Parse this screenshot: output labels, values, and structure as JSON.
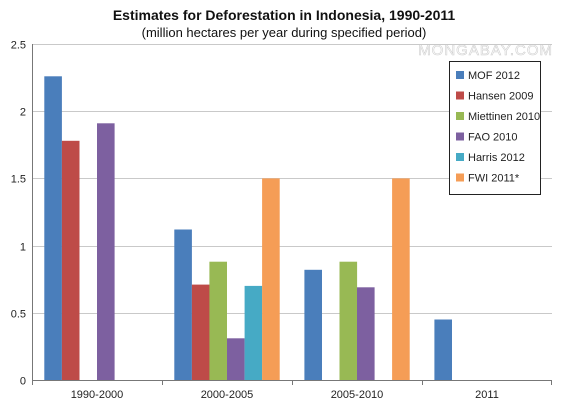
{
  "chart_data": {
    "type": "bar",
    "title": "Estimates for Deforestation in Indonesia, 1990-2011",
    "subtitle": "(million hectares per year during specified period)",
    "watermark": "MONGABAY.COM",
    "xlabel": "",
    "ylabel": "",
    "categories": [
      "1990-2000",
      "2000-2005",
      "2005-2010",
      "2011"
    ],
    "ylim": [
      0,
      2.5
    ],
    "yticks": [
      0,
      0.5,
      1,
      1.5,
      2,
      2.5
    ],
    "ytick_labels": [
      "0",
      "0.5",
      "1",
      "1.5",
      "2",
      "2.5"
    ],
    "grid": true,
    "legend_position": "top-right",
    "series": [
      {
        "name": "MOF 2012",
        "color": "#4a7ebb",
        "values": [
          2.26,
          1.12,
          0.82,
          0.45
        ]
      },
      {
        "name": "Hansen 2009",
        "color": "#be4b48",
        "values": [
          1.78,
          0.71,
          null,
          null
        ]
      },
      {
        "name": "Miettinen 2010",
        "color": "#98b954",
        "values": [
          null,
          0.88,
          0.88,
          null
        ]
      },
      {
        "name": "FAO 2010",
        "color": "#7d60a0",
        "values": [
          1.91,
          0.31,
          0.69,
          null
        ]
      },
      {
        "name": "Harris 2012",
        "color": "#46aac5",
        "values": [
          null,
          0.7,
          null,
          null
        ]
      },
      {
        "name": "FWI 2011*",
        "color": "#f59d56",
        "values": [
          null,
          1.5,
          1.5,
          null
        ]
      }
    ]
  }
}
